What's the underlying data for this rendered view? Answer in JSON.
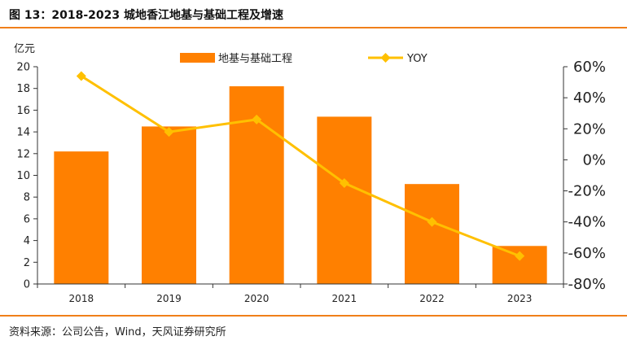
{
  "figure": {
    "title": "图 13：2018-2023 城地香江地基与基础工程及增速",
    "source": "资料来源：公司公告，Wind，天风证券研究所"
  },
  "colors": {
    "accent": "#f07f1a",
    "bar": "#ff8000",
    "line": "#ffc000"
  },
  "chart_data": {
    "type": "bar+line",
    "categories": [
      "2018",
      "2019",
      "2020",
      "2021",
      "2022",
      "2023"
    ],
    "series": [
      {
        "name": "地基与基础工程",
        "type": "bar",
        "axis": "left",
        "values": [
          12.2,
          14.5,
          18.2,
          15.4,
          9.2,
          3.5
        ]
      },
      {
        "name": "YOY",
        "type": "line",
        "axis": "right",
        "values": [
          0.54,
          0.18,
          0.26,
          -0.15,
          -0.4,
          -0.62
        ]
      }
    ],
    "y_left": {
      "label": "亿元",
      "min": 0,
      "max": 20,
      "ticks": [
        0,
        2,
        4,
        6,
        8,
        10,
        12,
        14,
        16,
        18,
        20
      ]
    },
    "y_right": {
      "min": -0.8,
      "max": 0.6,
      "ticks": [
        -0.8,
        -0.6,
        -0.4,
        -0.2,
        0,
        0.2,
        0.4,
        0.6
      ],
      "tick_labels": [
        "-80%",
        "-60%",
        "-40%",
        "-20%",
        "0%",
        "20%",
        "40%",
        "60%"
      ]
    },
    "legend_position": "top",
    "grid": false
  }
}
